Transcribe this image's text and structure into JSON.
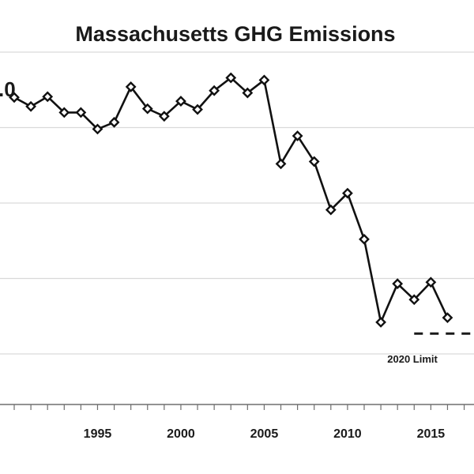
{
  "chart_data": {
    "type": "line",
    "title": "Massachusetts GHG Emissions",
    "xlabel": "",
    "ylabel": "",
    "x_ticks": [
      "1995",
      "2000",
      "2005",
      "2010",
      "2015"
    ],
    "xlim": [
      1990,
      2017.4
    ],
    "ylim": [
      60,
      100
    ],
    "grid": true,
    "callout": ".0",
    "series": [
      {
        "x": [
          1990,
          1991,
          1992,
          1993,
          1994,
          1995,
          1996,
          1997,
          1998,
          1999,
          2000,
          2001,
          2002,
          2003,
          2004,
          2005,
          2006,
          2007,
          2008,
          2009,
          2010,
          2011,
          2012,
          2013,
          2014,
          2015,
          2016
        ],
        "values": [
          94.0,
          92.8,
          94.1,
          92.0,
          92.0,
          89.8,
          90.7,
          95.4,
          92.5,
          91.5,
          93.5,
          92.4,
          94.9,
          96.6,
          94.6,
          96.3,
          85.2,
          88.9,
          85.5,
          79.1,
          81.3,
          75.2,
          64.2,
          69.3,
          67.2,
          69.5,
          64.8
        ]
      }
    ],
    "reference_lines": [
      {
        "label": "2020 Limit",
        "value": 62.7,
        "from": 2014.0,
        "to": 2017.4
      }
    ]
  }
}
